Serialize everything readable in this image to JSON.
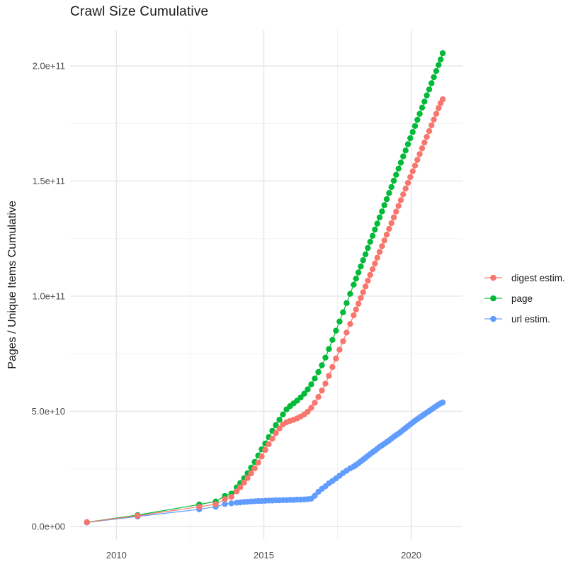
{
  "chart_data": {
    "type": "scatter",
    "title": "Crawl Size Cumulative",
    "xlabel": "",
    "ylabel": "Pages / Unique Items Cumulative",
    "legend_position": "right",
    "grid": true,
    "y_unit": "1e9",
    "xlim": [
      2008.43,
      2021.74
    ],
    "ylim_e9": [
      -5.9,
      215.7
    ],
    "x_tick_values": [
      2010,
      2015,
      2020
    ],
    "x_tick_labels": [
      "2010",
      "2015",
      "2020"
    ],
    "x_minor_ticks": [
      2012.5,
      2017.5
    ],
    "y_tick_values_e9": [
      0,
      50,
      100,
      150,
      200
    ],
    "y_tick_labels": [
      "0.0e+00",
      "5.0e+10",
      "1.0e+11",
      "1.5e+11",
      "2.0e+11"
    ],
    "y_minor_ticks_e9": [
      25,
      75,
      125,
      175
    ],
    "colors": {
      "grid_major": "#e7e7e7",
      "grid_minor": "#f2f2f2",
      "tick_text": "#4d4d4d",
      "title_text": "#1a1a1a"
    },
    "x": [
      2009.0,
      2010.72,
      2012.81,
      2013.37,
      2013.68,
      2013.9,
      2014.08,
      2014.2,
      2014.33,
      2014.45,
      2014.57,
      2014.69,
      2014.81,
      2014.93,
      2015.05,
      2015.17,
      2015.29,
      2015.41,
      2015.53,
      2015.65,
      2015.77,
      2015.89,
      2016.01,
      2016.13,
      2016.25,
      2016.37,
      2016.49,
      2016.61,
      2016.73,
      2016.85,
      2016.97,
      2017.09,
      2017.21,
      2017.33,
      2017.45,
      2017.57,
      2017.69,
      2017.81,
      2017.93,
      2018.05,
      2018.13,
      2018.21,
      2018.29,
      2018.37,
      2018.45,
      2018.53,
      2018.61,
      2018.69,
      2018.77,
      2018.85,
      2018.93,
      2019.01,
      2019.09,
      2019.17,
      2019.25,
      2019.33,
      2019.41,
      2019.49,
      2019.57,
      2019.65,
      2019.73,
      2019.81,
      2019.89,
      2019.97,
      2020.05,
      2020.13,
      2020.21,
      2020.29,
      2020.37,
      2020.45,
      2020.53,
      2020.61,
      2020.69,
      2020.77,
      2020.85,
      2020.93,
      2021.0,
      2021.07
    ],
    "series": [
      {
        "name": "digest estim.",
        "color": "#F8766D",
        "y_e9": [
          1.8,
          4.6,
          8.5,
          9.6,
          11.8,
          12.8,
          15.2,
          17.0,
          19.0,
          21.0,
          23.0,
          25.2,
          27.7,
          30.4,
          33.2,
          35.7,
          38.1,
          40.5,
          42.5,
          44.3,
          45.2,
          45.8,
          46.3,
          46.9,
          47.7,
          48.6,
          49.8,
          51.5,
          53.7,
          56.2,
          59.0,
          62.0,
          65.4,
          69.2,
          72.9,
          76.7,
          80.4,
          84.2,
          87.9,
          91.7,
          94.2,
          96.7,
          99.2,
          101.7,
          104.2,
          106.7,
          109.2,
          111.7,
          114.2,
          116.7,
          119.2,
          121.7,
          124.2,
          126.7,
          129.2,
          131.7,
          134.2,
          136.7,
          139.2,
          141.7,
          144.2,
          146.7,
          149.2,
          151.7,
          154.2,
          156.7,
          159.2,
          161.7,
          164.2,
          166.7,
          169.2,
          171.7,
          174.2,
          176.7,
          179.2,
          181.7,
          183.8,
          185.5
        ]
      },
      {
        "name": "page",
        "color": "#00BA38",
        "y_e9": [
          1.8,
          4.9,
          9.5,
          10.8,
          13.2,
          14.2,
          16.9,
          18.8,
          20.9,
          23.1,
          25.5,
          28.0,
          30.8,
          33.5,
          36.0,
          38.8,
          41.5,
          44.0,
          46.3,
          48.6,
          50.8,
          52.2,
          53.4,
          54.6,
          56.0,
          57.6,
          59.5,
          61.7,
          64.2,
          67.0,
          70.0,
          73.3,
          77.0,
          81.0,
          85.0,
          89.0,
          93.0,
          97.0,
          101.0,
          105.0,
          107.6,
          110.3,
          112.9,
          115.6,
          118.2,
          120.9,
          123.6,
          126.2,
          128.9,
          131.5,
          134.2,
          136.8,
          139.5,
          142.1,
          144.8,
          147.4,
          150.1,
          152.7,
          155.4,
          158.0,
          160.7,
          163.3,
          166.0,
          168.6,
          171.3,
          173.9,
          176.6,
          179.2,
          181.9,
          184.5,
          187.2,
          189.8,
          192.5,
          195.1,
          197.8,
          200.4,
          202.8,
          205.5
        ]
      },
      {
        "name": "url estim.",
        "color": "#619CFF",
        "y_e9": [
          1.7,
          4.3,
          7.4,
          8.5,
          9.7,
          10.0,
          10.3,
          10.4,
          10.6,
          10.7,
          10.8,
          10.9,
          11.0,
          11.0,
          11.1,
          11.2,
          11.2,
          11.3,
          11.3,
          11.4,
          11.4,
          11.5,
          11.5,
          11.6,
          11.6,
          11.7,
          11.8,
          12.0,
          13.3,
          15.0,
          16.3,
          17.4,
          18.7,
          19.7,
          20.8,
          22.0,
          23.2,
          24.2,
          25.2,
          26.0,
          26.7,
          27.4,
          28.2,
          29.0,
          29.8,
          30.6,
          31.4,
          32.2,
          32.9,
          33.7,
          34.5,
          35.2,
          35.9,
          36.6,
          37.3,
          38.1,
          38.9,
          39.6,
          40.3,
          41.1,
          41.9,
          42.7,
          43.5,
          44.3,
          45.1,
          45.9,
          46.6,
          47.3,
          48.0,
          48.7,
          49.4,
          50.1,
          50.8,
          51.5,
          52.2,
          52.9,
          53.4,
          53.8
        ]
      }
    ]
  }
}
